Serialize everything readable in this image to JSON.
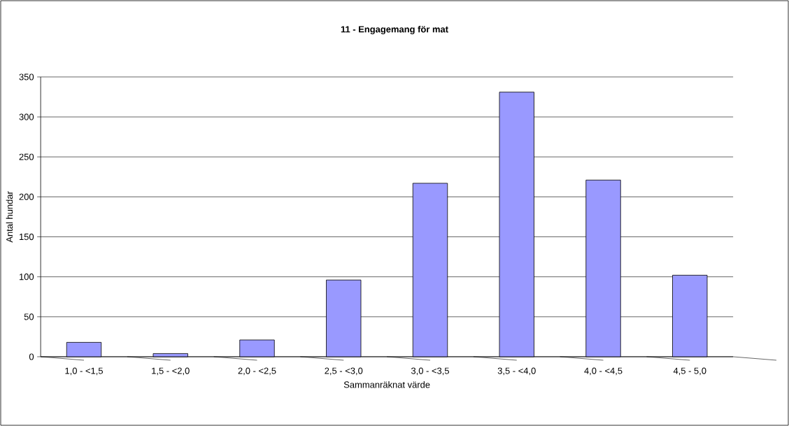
{
  "chart_data": {
    "type": "bar",
    "title": "11 - Engagemang för mat",
    "xlabel": "Sammanräknat värde",
    "ylabel": "Antal hundar",
    "categories": [
      "1,0 - <1,5",
      "1,5 - <2,0",
      "2,0 - <2,5",
      "2,5 - <3,0",
      "3,0 - <3,5",
      "3,5 - <4,0",
      "4,0 - <4,5",
      "4,5 - 5,0"
    ],
    "values": [
      18,
      4,
      21,
      96,
      217,
      331,
      221,
      102
    ],
    "color": "#9999ff",
    "ylim": [
      0,
      350
    ],
    "yticks": [
      0,
      50,
      100,
      150,
      200,
      250,
      300,
      350
    ],
    "grid": "y"
  }
}
